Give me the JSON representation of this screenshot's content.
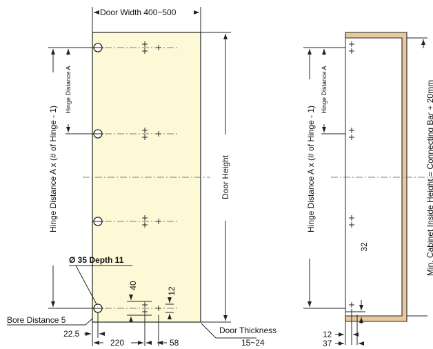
{
  "colors": {
    "door_fill": "#fdf8d5",
    "cabinet_fill": "#e8c89d",
    "line": "#222222"
  },
  "labels": {
    "door_width": "Door Width 400~500",
    "door_height": "Door Height",
    "hinge_distance_ax_left": "Hinge Distance A x  (# of Hinge  -  1)",
    "hinge_distance_a_left": "Hinge Distance A",
    "hinge_distance_ax_right": "Hinge Distance A x  (# of Hinge - 1)",
    "hinge_distance_a_right": "Hinge Distance A",
    "bore_spec": "Ø 35 Depth 11",
    "bore_distance": "Bore Distance 5",
    "dim_22_5": "22.5",
    "dim_220": "220",
    "dim_58": "58",
    "dim_40": "40",
    "dim_12_left": "12",
    "door_thickness": "Door Thickness",
    "door_thickness_range": "15~24",
    "min_cabinet": "Min. Cabinet Inside Height = Connecting Bar + 20mm",
    "dim_32": "32",
    "dim_12_right": "12",
    "dim_37": "37"
  }
}
